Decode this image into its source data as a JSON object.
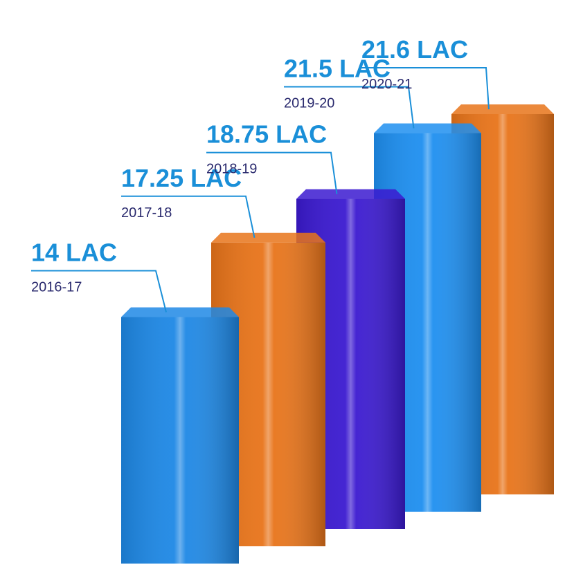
{
  "chart_data": {
    "type": "bar",
    "categories": [
      "2016-17",
      "2017-18",
      "2018-19",
      "2019-20",
      "2020-21"
    ],
    "values": [
      14,
      17.25,
      18.75,
      21.5,
      21.6
    ],
    "value_labels": [
      "14 LAC",
      "17.25 LAC",
      "18.75 LAC",
      "21.5 LAC",
      "21.6 LAC"
    ],
    "colors": [
      "#1e88e5",
      "#e8741a",
      "#3b1ad0",
      "#1e8ff0",
      "#e8741a"
    ]
  }
}
